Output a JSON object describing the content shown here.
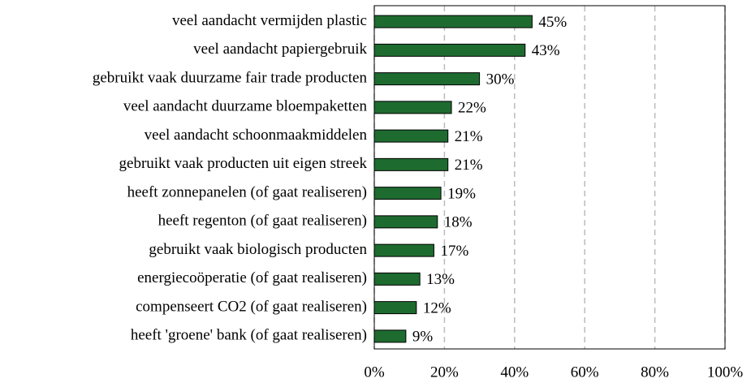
{
  "chart_data": {
    "type": "barh",
    "categories": [
      "veel aandacht vermijden plastic",
      "veel aandacht papiergebruik",
      "gebruikt vaak duurzame fair trade producten",
      "veel aandacht duurzame bloempaketten",
      "veel aandacht schoonmaakmiddelen",
      "gebruikt vaak producten uit eigen streek",
      "heeft zonnepanelen (of gaat realiseren)",
      "heeft regenton (of gaat realiseren)",
      "gebruikt vaak biologisch producten",
      "energiecoöperatie (of gaat realiseren)",
      "compenseert CO2 (of gaat realiseren)",
      "heeft 'groene' bank (of gaat realiseren)"
    ],
    "values": [
      45,
      43,
      30,
      22,
      21,
      21,
      19,
      18,
      17,
      13,
      12,
      9
    ],
    "value_labels": [
      "45%",
      "43%",
      "30%",
      "22%",
      "21%",
      "21%",
      "19%",
      "18%",
      "17%",
      "13%",
      "12%",
      "9%"
    ],
    "color": "#1e6b30",
    "xlim": [
      0,
      100
    ],
    "xticks": [
      {
        "value": 0,
        "label": "0%"
      },
      {
        "value": 20,
        "label": "20%"
      },
      {
        "value": 40,
        "label": "40%"
      },
      {
        "value": 60,
        "label": "60%"
      },
      {
        "value": 80,
        "label": "80%"
      },
      {
        "value": 100,
        "label": "100%"
      }
    ],
    "grid": true
  }
}
